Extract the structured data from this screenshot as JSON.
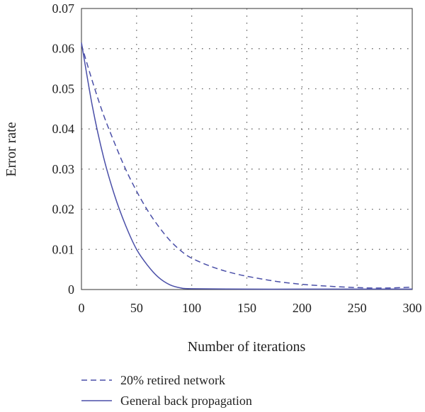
{
  "chart_data": {
    "type": "line",
    "xlabel": "Number of iterations",
    "ylabel": "Error rate",
    "xlim": [
      0,
      300
    ],
    "ylim": [
      0,
      0.07
    ],
    "x_ticks": [
      "0",
      "50",
      "100",
      "150",
      "200",
      "250",
      "300"
    ],
    "y_ticks": [
      "0",
      "0.01",
      "0.02",
      "0.03",
      "0.04",
      "0.05",
      "0.06",
      "0.07"
    ],
    "grid": "dotted",
    "legend_position": "bottom",
    "series": [
      {
        "name": "20% retired network",
        "style": "dashed",
        "color": "#4a4fa8",
        "x": [
          0,
          10,
          20,
          30,
          40,
          50,
          60,
          70,
          80,
          90,
          100,
          120,
          140,
          160,
          180,
          200,
          220,
          240,
          260,
          280,
          300
        ],
        "values": [
          0.061,
          0.0518,
          0.0435,
          0.0365,
          0.03,
          0.0245,
          0.0197,
          0.0157,
          0.0123,
          0.0097,
          0.0078,
          0.0055,
          0.0039,
          0.0028,
          0.0019,
          0.0013,
          0.0009,
          0.0006,
          0.0004,
          0.0004,
          0.0006
        ]
      },
      {
        "name": "General back propagation",
        "style": "solid",
        "color": "#4a4fa8",
        "x": [
          0,
          10,
          20,
          30,
          40,
          50,
          60,
          70,
          80,
          90,
          100,
          150,
          200,
          250,
          300
        ],
        "values": [
          0.0615,
          0.0455,
          0.033,
          0.0235,
          0.016,
          0.01,
          0.006,
          0.003,
          0.0012,
          0.0004,
          0.0002,
          0.0001,
          0.0001,
          0.0001,
          0.0001
        ]
      }
    ]
  }
}
